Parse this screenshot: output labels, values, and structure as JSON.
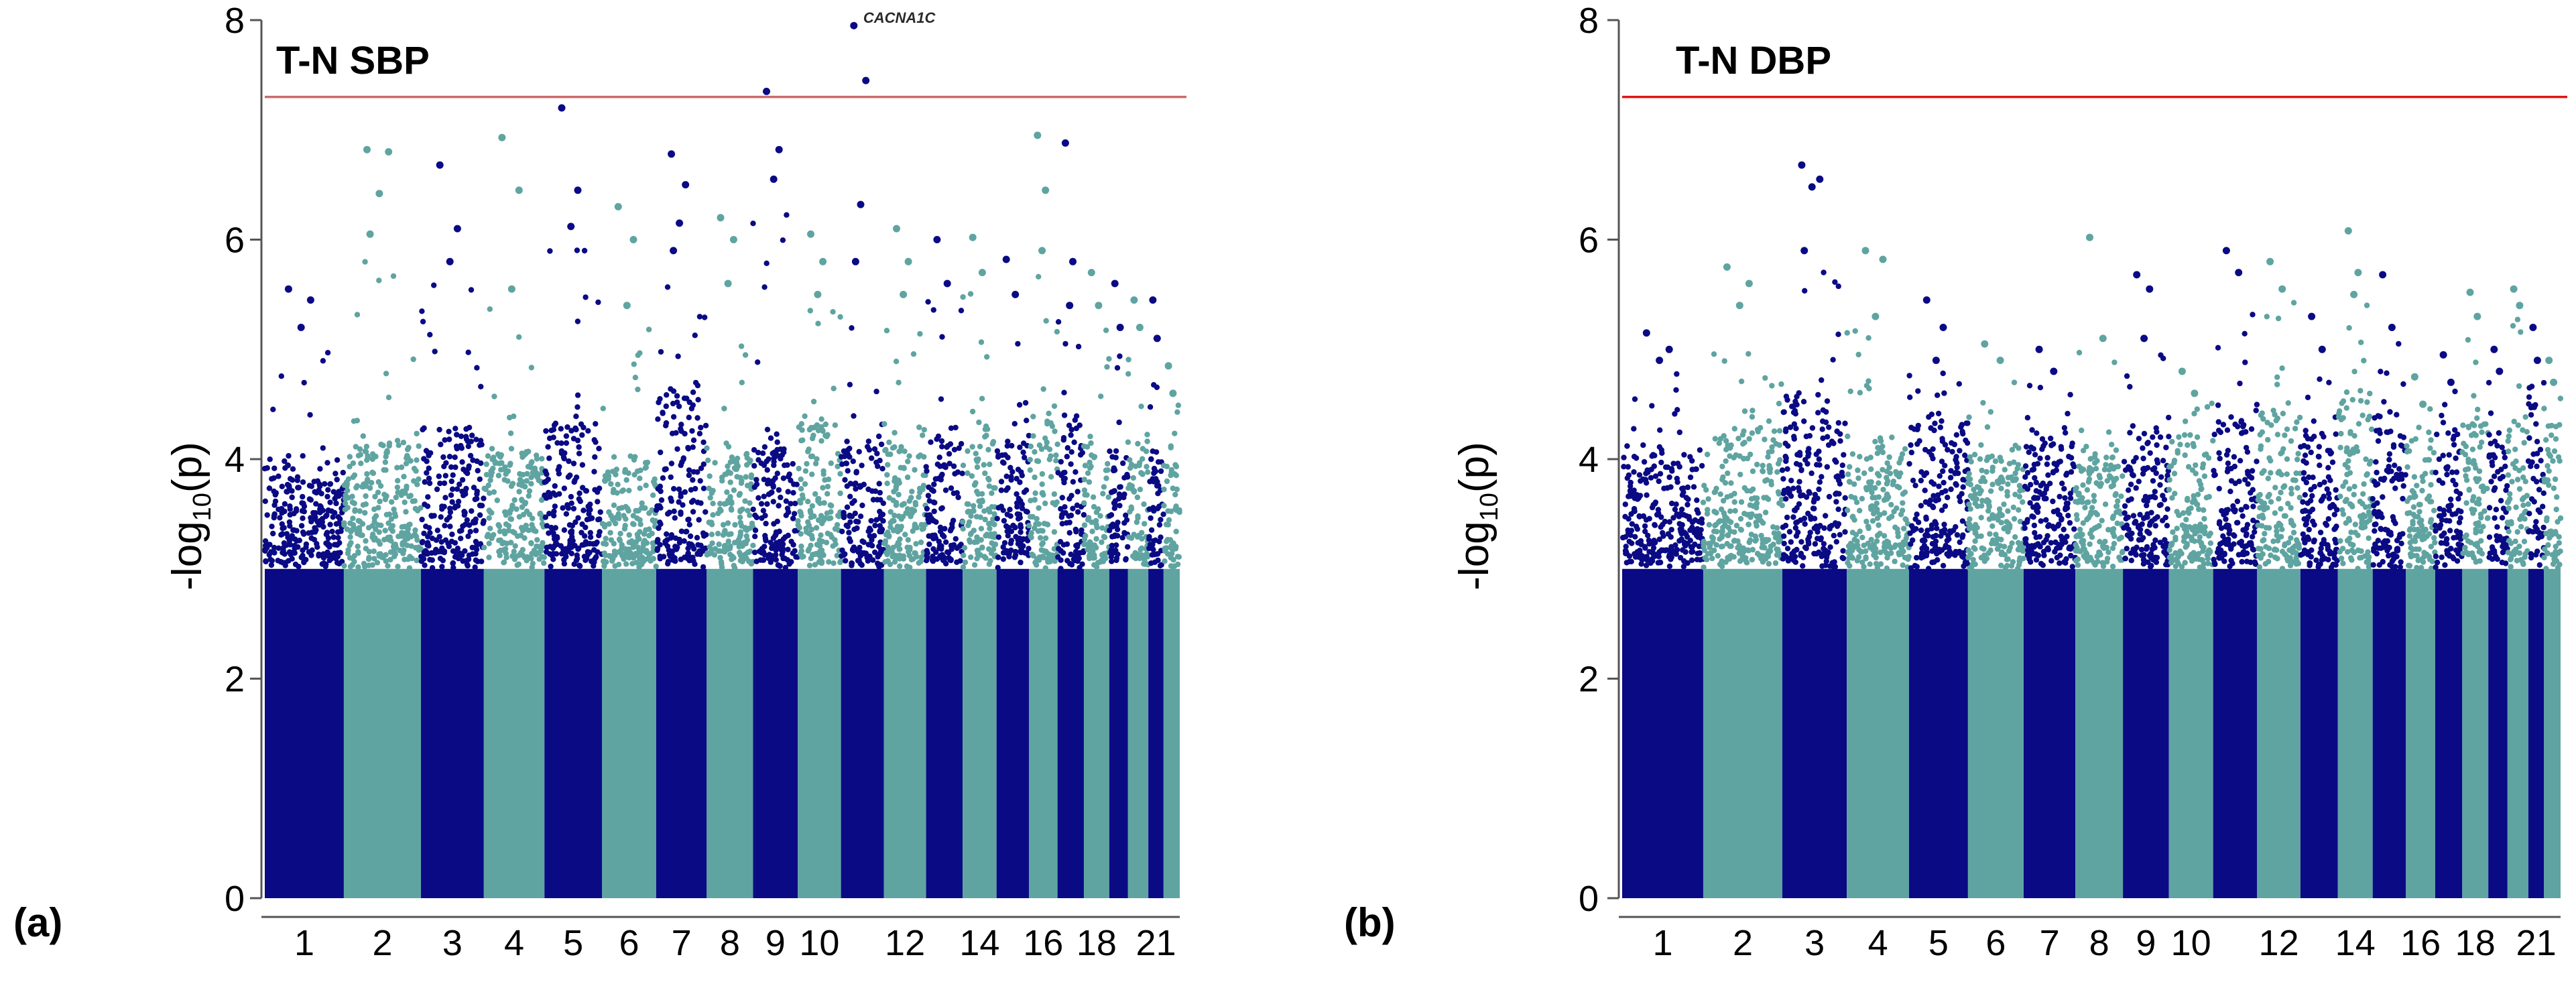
{
  "colors": {
    "navy": "#0a0a85",
    "teal": "#5fa4a1",
    "threshold_a": "#cd6a6a",
    "threshold_b": "#e01414",
    "axis": "#555555"
  },
  "chart_data": [
    {
      "type": "scatter",
      "subtype": "manhattan",
      "panel_label": "(a)",
      "title": "T-N SBP",
      "ylabel": "-log10(p)",
      "ylabel_parts": {
        "prefix": "-log",
        "sub": "10",
        "suffix": "(p)"
      },
      "ylim": [
        0,
        8
      ],
      "yticks": [
        "0",
        "2",
        "4",
        "6",
        "8"
      ],
      "significance_threshold": 7.3,
      "chromosomes": [
        {
          "chr": 1,
          "size": 249,
          "label": "1",
          "bulk": 3.9,
          "top": [
            5.55,
            5.45,
            5.2
          ]
        },
        {
          "chr": 2,
          "size": 243,
          "label": "2",
          "bulk": 4.1,
          "top": [
            6.82,
            6.8,
            6.42,
            6.05
          ]
        },
        {
          "chr": 3,
          "size": 198,
          "label": "3",
          "bulk": 4.2,
          "top": [
            6.68,
            6.1,
            5.8
          ]
        },
        {
          "chr": 4,
          "size": 191,
          "label": "4",
          "bulk": 4.0,
          "top": [
            6.93,
            6.45,
            5.55
          ]
        },
        {
          "chr": 5,
          "size": 181,
          "label": "5",
          "bulk": 4.3,
          "top": [
            7.2,
            6.45,
            6.12
          ]
        },
        {
          "chr": 6,
          "size": 171,
          "label": "6",
          "bulk": 3.9,
          "top": [
            6.3,
            6.0,
            5.4
          ]
        },
        {
          "chr": 7,
          "size": 159,
          "label": "7",
          "bulk": 4.6,
          "top": [
            6.78,
            6.5,
            6.15,
            5.9
          ]
        },
        {
          "chr": 8,
          "size": 146,
          "label": "8",
          "bulk": 4.0,
          "top": [
            6.2,
            6.0,
            5.6
          ]
        },
        {
          "chr": 9,
          "size": 141,
          "label": "9",
          "bulk": 4.1,
          "top": [
            7.35,
            6.82,
            6.55
          ]
        },
        {
          "chr": 10,
          "size": 136,
          "label": "10",
          "bulk": 4.3,
          "top": [
            6.05,
            5.8,
            5.5
          ]
        },
        {
          "chr": 11,
          "size": 135,
          "label": "",
          "bulk": 4.1,
          "top": [
            7.95,
            7.45,
            6.32,
            5.8
          ],
          "annotation": "CACNA1C"
        },
        {
          "chr": 12,
          "size": 133,
          "label": "12",
          "bulk": 4.2,
          "top": [
            6.1,
            5.8,
            5.5
          ]
        },
        {
          "chr": 13,
          "size": 115,
          "label": "",
          "bulk": 4.2,
          "top": [
            6.0,
            5.6
          ]
        },
        {
          "chr": 14,
          "size": 107,
          "label": "14",
          "bulk": 4.3,
          "top": [
            6.02,
            5.7
          ]
        },
        {
          "chr": 15,
          "size": 102,
          "label": "",
          "bulk": 4.1,
          "top": [
            5.82,
            5.5
          ]
        },
        {
          "chr": 16,
          "size": 90,
          "label": "16",
          "bulk": 4.4,
          "top": [
            6.95,
            6.45,
            5.9
          ]
        },
        {
          "chr": 17,
          "size": 83,
          "label": "",
          "bulk": 4.3,
          "top": [
            6.88,
            5.8,
            5.4
          ]
        },
        {
          "chr": 18,
          "size": 80,
          "label": "18",
          "bulk": 4.1,
          "top": [
            5.7,
            5.4
          ]
        },
        {
          "chr": 19,
          "size": 59,
          "label": "",
          "bulk": 4.0,
          "top": [
            5.6,
            5.2
          ]
        },
        {
          "chr": 20,
          "size": 64,
          "label": "",
          "bulk": 4.1,
          "top": [
            5.45,
            5.2
          ]
        },
        {
          "chr": 21,
          "size": 48,
          "label": "21",
          "bulk": 4.0,
          "top": [
            5.45,
            5.1
          ]
        },
        {
          "chr": 22,
          "size": 51,
          "label": "",
          "bulk": 4.0,
          "top": [
            4.85,
            4.6
          ]
        }
      ]
    },
    {
      "type": "scatter",
      "subtype": "manhattan",
      "panel_label": "(b)",
      "title": "T-N DBP",
      "ylabel": "-log10(p)",
      "ylabel_parts": {
        "prefix": "-log",
        "sub": "10",
        "suffix": "(p)"
      },
      "ylim": [
        0,
        8
      ],
      "yticks": [
        "0",
        "2",
        "4",
        "6",
        "8"
      ],
      "significance_threshold": 7.3,
      "chromosomes": [
        {
          "chr": 1,
          "size": 249,
          "label": "1",
          "bulk": 4.0,
          "top": [
            5.15,
            5.0,
            4.9
          ]
        },
        {
          "chr": 2,
          "size": 243,
          "label": "2",
          "bulk": 4.2,
          "top": [
            5.75,
            5.6,
            5.4
          ]
        },
        {
          "chr": 3,
          "size": 198,
          "label": "3",
          "bulk": 4.5,
          "top": [
            6.68,
            6.55,
            6.48,
            5.9
          ]
        },
        {
          "chr": 4,
          "size": 191,
          "label": "4",
          "bulk": 4.1,
          "top": [
            5.9,
            5.82,
            5.3
          ]
        },
        {
          "chr": 5,
          "size": 181,
          "label": "5",
          "bulk": 4.3,
          "top": [
            5.45,
            5.2,
            4.9
          ]
        },
        {
          "chr": 6,
          "size": 171,
          "label": "6",
          "bulk": 4.0,
          "top": [
            5.05,
            4.9
          ]
        },
        {
          "chr": 7,
          "size": 159,
          "label": "7",
          "bulk": 4.1,
          "top": [
            5.0,
            4.8
          ]
        },
        {
          "chr": 8,
          "size": 146,
          "label": "8",
          "bulk": 4.0,
          "top": [
            6.02,
            5.1
          ]
        },
        {
          "chr": 9,
          "size": 141,
          "label": "9",
          "bulk": 4.2,
          "top": [
            5.68,
            5.55,
            5.1
          ]
        },
        {
          "chr": 10,
          "size": 136,
          "label": "10",
          "bulk": 4.1,
          "top": [
            4.8,
            4.6
          ]
        },
        {
          "chr": 11,
          "size": 135,
          "label": "",
          "bulk": 4.3,
          "top": [
            5.9,
            5.7
          ]
        },
        {
          "chr": 12,
          "size": 133,
          "label": "12",
          "bulk": 4.4,
          "top": [
            5.8,
            5.55
          ]
        },
        {
          "chr": 13,
          "size": 115,
          "label": "",
          "bulk": 4.2,
          "top": [
            5.3,
            5.0
          ]
        },
        {
          "chr": 14,
          "size": 107,
          "label": "14",
          "bulk": 4.6,
          "top": [
            6.08,
            5.7,
            5.5
          ]
        },
        {
          "chr": 15,
          "size": 102,
          "label": "",
          "bulk": 4.4,
          "top": [
            5.68,
            5.2
          ]
        },
        {
          "chr": 16,
          "size": 90,
          "label": "16",
          "bulk": 4.1,
          "top": [
            4.75,
            4.5
          ]
        },
        {
          "chr": 17,
          "size": 83,
          "label": "",
          "bulk": 4.2,
          "top": [
            4.95,
            4.7
          ]
        },
        {
          "chr": 18,
          "size": 80,
          "label": "18",
          "bulk": 4.3,
          "top": [
            5.52,
            5.3
          ]
        },
        {
          "chr": 19,
          "size": 59,
          "label": "",
          "bulk": 4.1,
          "top": [
            5.0,
            4.8
          ]
        },
        {
          "chr": 20,
          "size": 64,
          "label": "",
          "bulk": 4.3,
          "top": [
            5.55,
            5.4
          ]
        },
        {
          "chr": 21,
          "size": 48,
          "label": "21",
          "bulk": 4.5,
          "top": [
            5.2,
            4.9
          ]
        },
        {
          "chr": 22,
          "size": 51,
          "label": "",
          "bulk": 4.2,
          "top": [
            4.9,
            4.7
          ]
        }
      ]
    }
  ]
}
